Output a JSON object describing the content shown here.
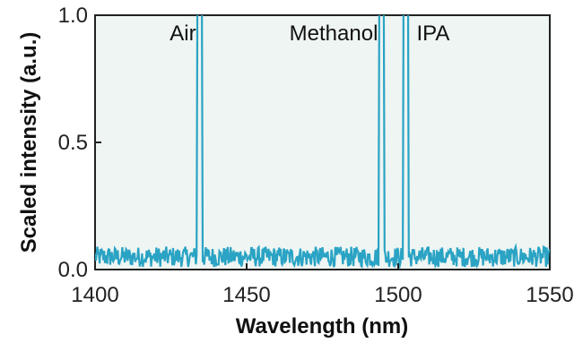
{
  "chart_data": {
    "type": "line",
    "title": "",
    "xlabel": "Wavelength (nm)",
    "ylabel": "Scaled intensity (a.u.)",
    "xlim": [
      1400,
      1550
    ],
    "ylim": [
      0.0,
      1.0
    ],
    "xticks": [
      1400,
      1450,
      1500,
      1550
    ],
    "xtick_labels": [
      "1400",
      "1450",
      "1500",
      "1550"
    ],
    "yticks": [
      0.0,
      0.5,
      1.0
    ],
    "ytick_labels": [
      "0.0",
      "0.5",
      "1.0"
    ],
    "grid": false,
    "colors": {
      "line": "#2aa3c4",
      "plot_background": "#eef5f3"
    },
    "series": [
      {
        "peaks": [
          {
            "label": "Air",
            "wavelength": 1434.5,
            "value": 1.0
          },
          {
            "label": "Methanol",
            "wavelength": 1494.5,
            "value": 1.0
          },
          {
            "label": "IPA",
            "wavelength": 1502.5,
            "value": 1.0
          }
        ],
        "baseline_mean": 0.05,
        "baseline_noise": 0.04
      }
    ],
    "annotations": [
      {
        "text": "Air",
        "x": 1434.5,
        "y": 0.93
      },
      {
        "text": "Methanol",
        "x": 1494.5,
        "y": 0.93
      },
      {
        "text": "IPA",
        "x": 1502.5,
        "y": 0.93
      }
    ]
  }
}
